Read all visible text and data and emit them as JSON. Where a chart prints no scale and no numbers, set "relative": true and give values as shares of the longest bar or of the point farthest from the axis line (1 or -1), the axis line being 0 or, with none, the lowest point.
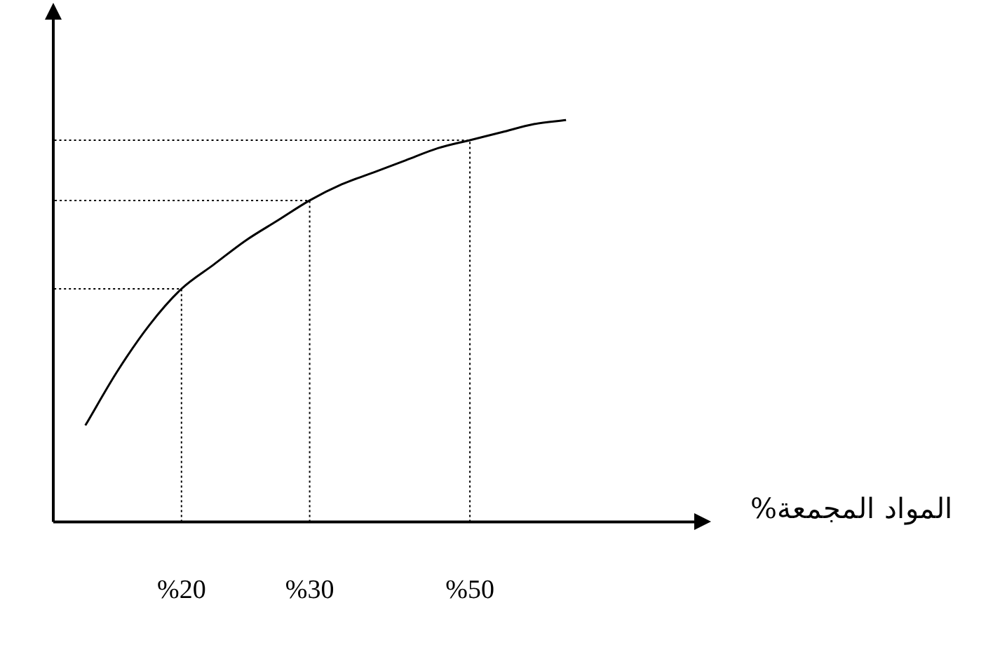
{
  "chart_data": {
    "type": "line",
    "relative": true,
    "xlabel": "المواد المجمعة%",
    "categories": [
      null,
      null,
      null,
      null,
      "%20",
      null,
      null,
      null,
      "%30",
      null,
      null,
      null,
      null,
      "%50",
      null,
      null,
      null,
      null,
      null,
      null,
      null
    ],
    "series": [
      {
        "color": "#000000",
        "values": [
          null,
          0.24,
          0.375,
          0.49,
          0.58,
          0.64,
          0.7,
          0.75,
          0.8,
          0.84,
          0.87,
          0.9,
          0.93,
          0.95,
          0.97,
          0.99,
          1,
          null,
          null,
          null,
          null
        ]
      }
    ],
    "ref_lines": [
      {
        "axis": "x",
        "value": "%20",
        "line_style": "dotted"
      },
      {
        "axis": "x",
        "value": "%30",
        "line_style": "dotted"
      },
      {
        "axis": "x",
        "value": "%50",
        "line_style": "dotted"
      }
    ],
    "marker": "none",
    "grid": false,
    "legend": false,
    "line_style": "solid"
  }
}
